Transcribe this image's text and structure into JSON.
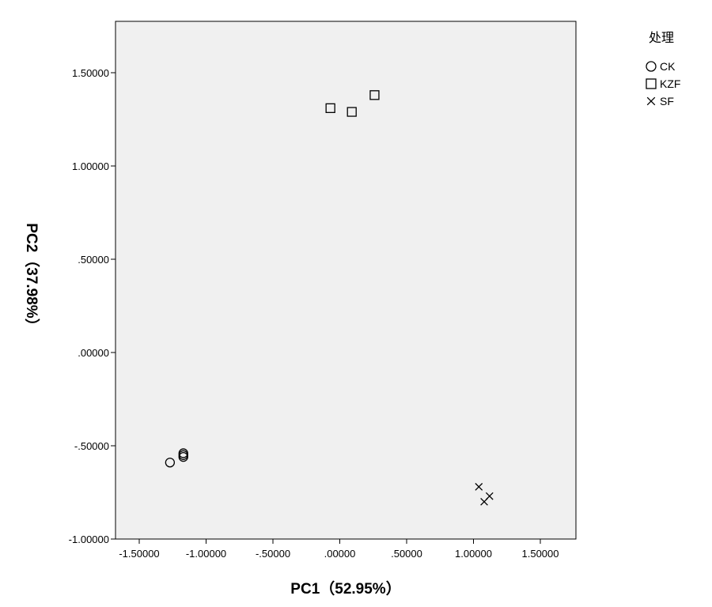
{
  "chart_data": {
    "type": "scatter",
    "xlabel": "PC1（52.95%）",
    "ylabel": "PC2（37.98%）",
    "xlim": [
      -1.65,
      1.65
    ],
    "ylim": [
      -1.0,
      1.5
    ],
    "xticks": [
      -1.5,
      -1.0,
      -0.5,
      0.0,
      0.5,
      1.0,
      1.5
    ],
    "xtick_labels": [
      "-1.50000",
      "-1.00000",
      "-.50000",
      ".00000",
      ".50000",
      "1.00000",
      "1.50000"
    ],
    "yticks": [
      -1.0,
      -0.5,
      0.0,
      0.5,
      1.0,
      1.5
    ],
    "ytick_labels": [
      "-1.00000",
      "-.50000",
      ".00000",
      ".50000",
      "1.00000",
      "1.50000"
    ],
    "plot_background": "#f0f0f0",
    "grid": false,
    "legend": {
      "title": "处理",
      "position": "right-top"
    },
    "series": [
      {
        "name": "CK",
        "marker": "circle",
        "x": [
          -1.27,
          -1.17,
          -1.17,
          -1.17
        ],
        "y": [
          -0.59,
          -0.54,
          -0.56,
          -0.55
        ]
      },
      {
        "name": "KZF",
        "marker": "square",
        "x": [
          -0.07,
          0.09,
          0.26
        ],
        "y": [
          1.31,
          1.29,
          1.38
        ]
      },
      {
        "name": "SF",
        "marker": "x",
        "x": [
          1.04,
          1.08,
          1.12
        ],
        "y": [
          -0.72,
          -0.8,
          -0.77
        ]
      }
    ]
  }
}
